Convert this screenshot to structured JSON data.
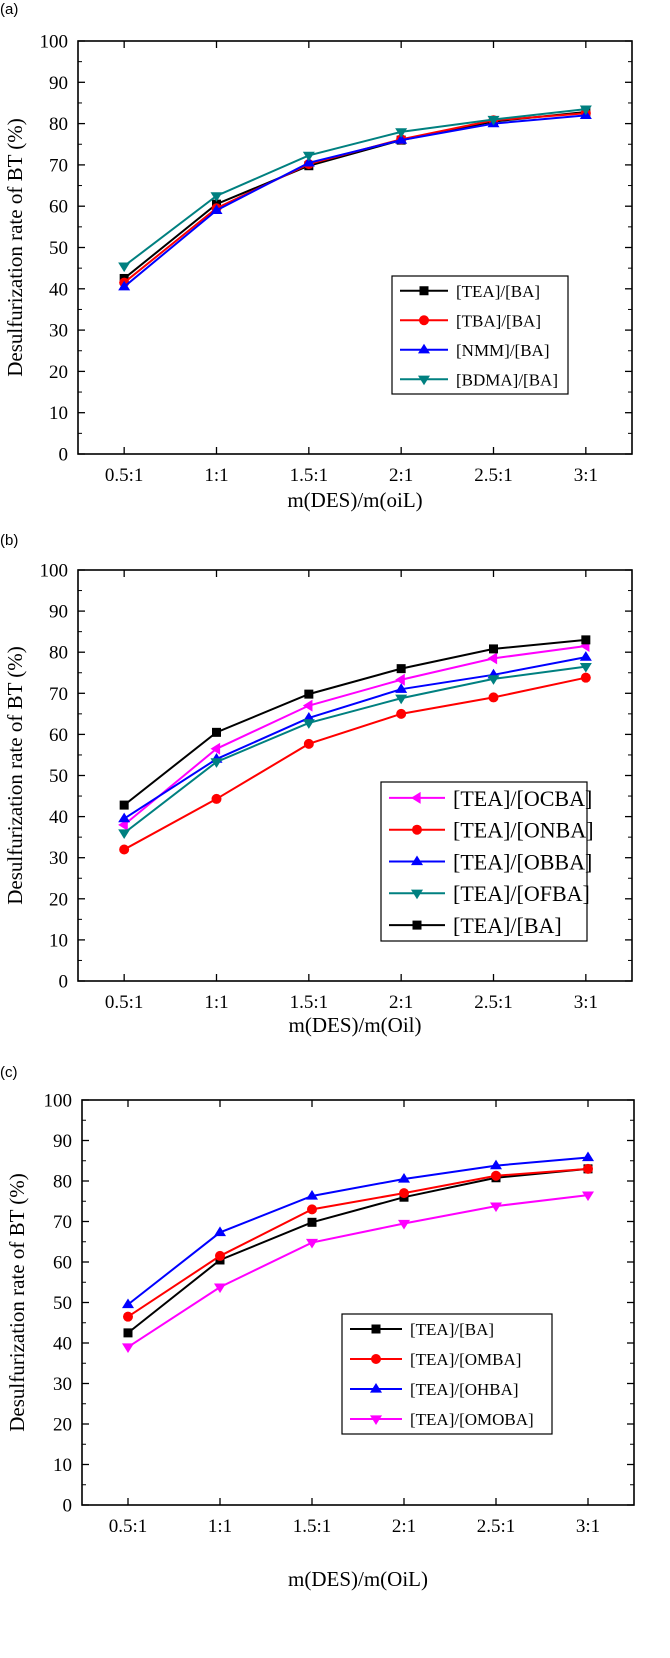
{
  "chart_data": [
    {
      "panel_label": "(a)",
      "type": "line",
      "categories": [
        "0.5:1",
        "1:1",
        "1.5:1",
        "2:1",
        "2.5:1",
        "3:1"
      ],
      "xlabel": "m(DES)/m(oiL)",
      "ylabel": "Desulfurization rate of BT (%)",
      "ylim": [
        0,
        100
      ],
      "yticks": [
        "0",
        "10",
        "20",
        "30",
        "40",
        "50",
        "60",
        "70",
        "80",
        "90",
        "100"
      ],
      "legend_position": "center-right",
      "grid": false,
      "series": [
        {
          "name": "[TEA]/[BA]",
          "color": "#000000",
          "marker": "square",
          "values": [
            42.5,
            60.5,
            69.8,
            76.0,
            80.5,
            82.8
          ]
        },
        {
          "name": "[TBA]/[BA]",
          "color": "#ff0000",
          "marker": "circle",
          "values": [
            41.5,
            59.5,
            70.2,
            76.2,
            80.8,
            82.5
          ]
        },
        {
          "name": "[NMM]/[BA]",
          "color": "#0000ff",
          "marker": "triangle-up",
          "values": [
            40.5,
            59.0,
            70.5,
            76.0,
            80.0,
            82.0
          ]
        },
        {
          "name": "[BDMA]/[BA]",
          "color": "#008080",
          "marker": "triangle-down",
          "values": [
            45.5,
            62.5,
            72.3,
            78.0,
            81.0,
            83.5
          ]
        }
      ]
    },
    {
      "panel_label": "(b)",
      "type": "line",
      "categories": [
        "0.5:1",
        "1:1",
        "1.5:1",
        "2:1",
        "2.5:1",
        "3:1"
      ],
      "xlabel": "m(DES)/m(Oil)",
      "ylabel": "Desulfurization rate of BT (%)",
      "ylim": [
        0,
        100
      ],
      "yticks": [
        "0",
        "10",
        "20",
        "30",
        "40",
        "50",
        "60",
        "70",
        "80",
        "90",
        "100"
      ],
      "legend_position": "center-right",
      "grid": false,
      "series": [
        {
          "name": "[TEA]/[OCBA]",
          "color": "#ff00ff",
          "marker": "triangle-left",
          "values": [
            38.0,
            56.5,
            67.0,
            73.3,
            78.5,
            81.5
          ]
        },
        {
          "name": "[TEA]/[ONBA]",
          "color": "#ff0000",
          "marker": "circle",
          "values": [
            32.0,
            44.3,
            57.7,
            65.0,
            69.0,
            73.8
          ]
        },
        {
          "name": "[TEA]/[OBBA]",
          "color": "#0000ff",
          "marker": "triangle-up",
          "values": [
            39.5,
            54.0,
            64.0,
            71.0,
            74.5,
            78.8
          ]
        },
        {
          "name": "[TEA]/[OFBA]",
          "color": "#008080",
          "marker": "triangle-down",
          "values": [
            36.0,
            53.3,
            62.8,
            68.8,
            73.5,
            76.5
          ]
        },
        {
          "name": "[TEA]/[BA]",
          "color": "#000000",
          "marker": "square",
          "values": [
            42.8,
            60.5,
            69.8,
            76.0,
            80.8,
            83.0
          ]
        }
      ]
    },
    {
      "panel_label": "(c)",
      "type": "line",
      "categories": [
        "0.5:1",
        "1:1",
        "1.5:1",
        "2:1",
        "2.5:1",
        "3:1"
      ],
      "xlabel": "m(DES)/m(OiL)",
      "ylabel": "Desulfurization rate of BT (%)",
      "ylim": [
        0,
        100
      ],
      "yticks": [
        "0",
        "10",
        "20",
        "30",
        "40",
        "50",
        "60",
        "70",
        "80",
        "90",
        "100"
      ],
      "legend_position": "center-right",
      "grid": false,
      "series": [
        {
          "name": "[TEA]/[BA]",
          "color": "#000000",
          "marker": "square",
          "values": [
            42.5,
            60.5,
            69.8,
            76.0,
            80.8,
            83.0
          ]
        },
        {
          "name": "[TEA]/[OMBA]",
          "color": "#ff0000",
          "marker": "circle",
          "values": [
            46.5,
            61.5,
            73.0,
            77.0,
            81.3,
            83.0
          ]
        },
        {
          "name": "[TEA]/[OHBA]",
          "color": "#0000ff",
          "marker": "triangle-up",
          "values": [
            49.5,
            67.3,
            76.3,
            80.5,
            83.8,
            85.8
          ]
        },
        {
          "name": "[TEA]/[OMOBA]",
          "color": "#ff00ff",
          "marker": "triangle-down",
          "values": [
            39.0,
            53.8,
            64.8,
            69.5,
            73.8,
            76.5
          ]
        }
      ]
    }
  ]
}
